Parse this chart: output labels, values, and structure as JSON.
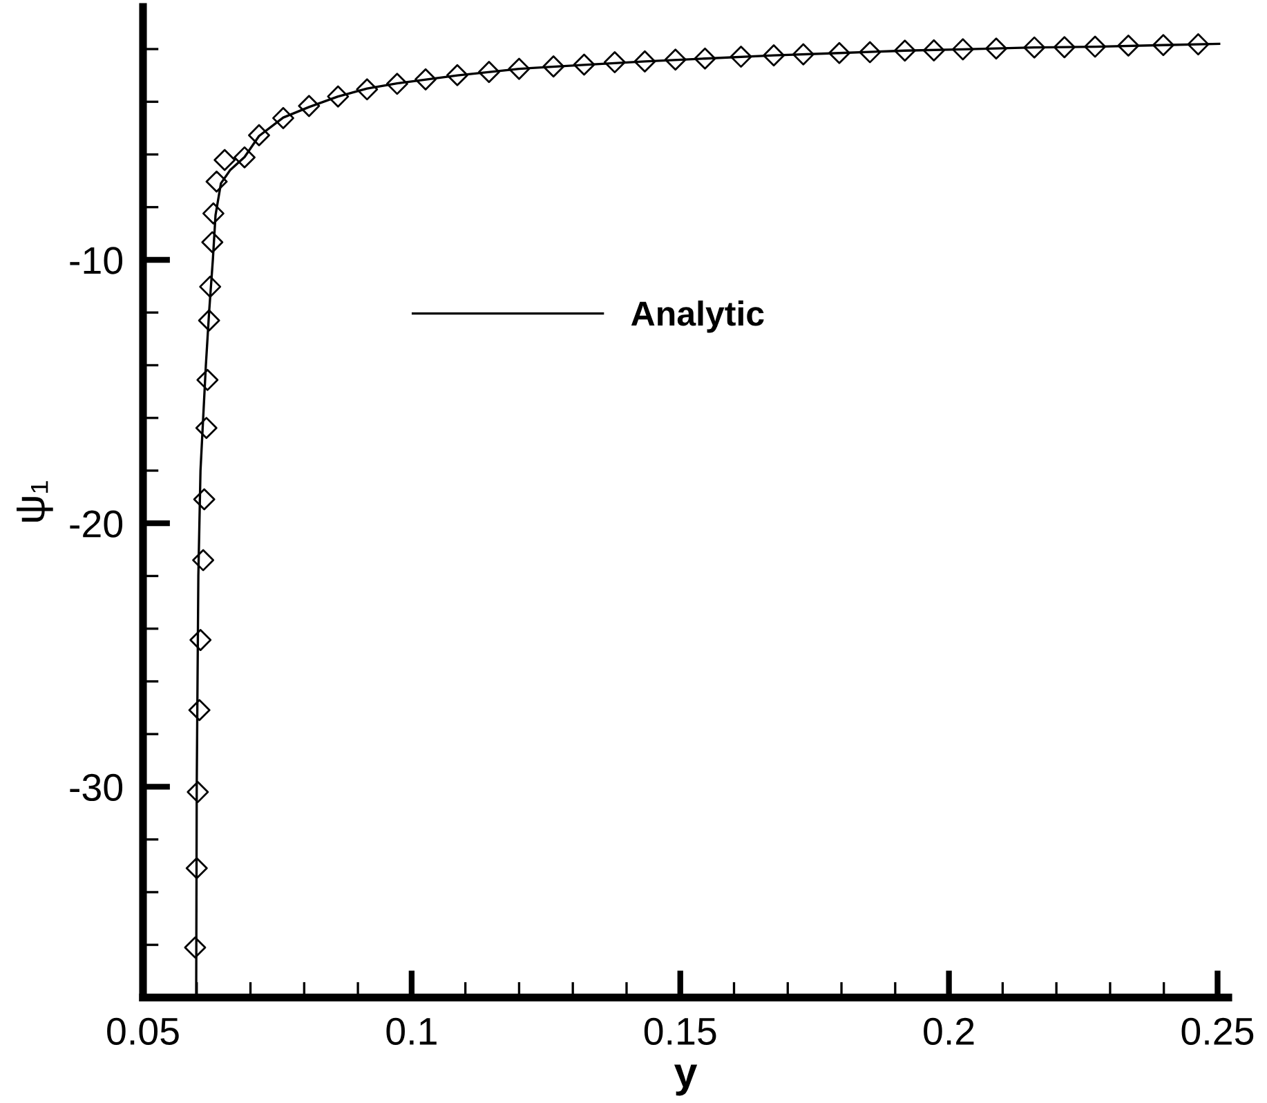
{
  "chart_data": {
    "type": "scatter",
    "xlabel": "y",
    "ylabel": "ψ₁",
    "xlim": [
      0.05,
      0.252
    ],
    "ylim": [
      -38,
      -0.4
    ],
    "xticks": [
      0.05,
      {
        "value": 0.06,
        "label": null
      },
      {
        "value": 0.07,
        "label": null
      },
      {
        "value": 0.08,
        "label": null
      },
      {
        "value": 0.09,
        "label": null
      },
      0.1,
      {
        "value": 0.11,
        "label": null
      },
      {
        "value": 0.12,
        "label": null
      },
      {
        "value": 0.13,
        "label": null
      },
      {
        "value": 0.14,
        "label": null
      },
      0.15,
      {
        "value": 0.16,
        "label": null
      },
      {
        "value": 0.17,
        "label": null
      },
      {
        "value": 0.18,
        "label": null
      },
      {
        "value": 0.19,
        "label": null
      },
      0.2,
      {
        "value": 0.21,
        "label": null
      },
      {
        "value": 0.22,
        "label": null
      },
      {
        "value": 0.23,
        "label": null
      },
      {
        "value": 0.24,
        "label": null
      },
      0.25
    ],
    "yticks": [
      {
        "value": -36,
        "label": null
      },
      {
        "value": -34,
        "label": null
      },
      {
        "value": -32,
        "label": null
      },
      -30,
      {
        "value": -28,
        "label": null
      },
      {
        "value": -26,
        "label": null
      },
      {
        "value": -24,
        "label": null
      },
      {
        "value": -22,
        "label": null
      },
      -20,
      {
        "value": -18,
        "label": null
      },
      {
        "value": -16,
        "label": null
      },
      {
        "value": -14,
        "label": null
      },
      {
        "value": -12,
        "label": null
      },
      -10,
      {
        "value": -8,
        "label": null
      },
      {
        "value": -6,
        "label": null
      },
      {
        "value": -4,
        "label": null
      },
      {
        "value": -2,
        "label": null
      }
    ],
    "grid": false,
    "legend": "top left",
    "series": [
      {
        "color": "#000000",
        "marker": "diamond",
        "x": [
          0.0597,
          0.06,
          0.0602,
          0.0605,
          0.0607,
          0.0612,
          0.0614,
          0.0618,
          0.062,
          0.0623,
          0.0625,
          0.0629,
          0.0631,
          0.0637,
          0.0652,
          0.0689,
          0.0716,
          0.0761,
          0.0809,
          0.0863,
          0.0917,
          0.0973,
          0.1026,
          0.1085,
          0.1144,
          0.12,
          0.1264,
          0.1321,
          0.1378,
          0.1434,
          0.1491,
          0.1546,
          0.1613,
          0.1674,
          0.1729,
          0.1796,
          0.1853,
          0.1918,
          0.1972,
          0.2026,
          0.2088,
          0.2159,
          0.2215,
          0.2272,
          0.2334,
          0.2399,
          0.2464
        ],
        "values": [
          -36.1,
          -33.09,
          -30.2,
          -27.09,
          -24.43,
          -21.4,
          -19.09,
          -16.38,
          -14.56,
          -12.3,
          -11.02,
          -9.33,
          -8.24,
          -7.03,
          -6.21,
          -6.11,
          -5.27,
          -4.62,
          -4.16,
          -3.8,
          -3.53,
          -3.32,
          -3.15,
          -2.99,
          -2.87,
          -2.75,
          -2.66,
          -2.59,
          -2.5,
          -2.47,
          -2.4,
          -2.36,
          -2.29,
          -2.24,
          -2.2,
          -2.15,
          -2.12,
          -2.06,
          -2.05,
          -2.01,
          -1.98,
          -1.94,
          -1.93,
          -1.91,
          -1.87,
          -1.85,
          -1.82
        ]
      },
      {
        "type": "line",
        "name": "Analytic",
        "color": "#000000",
        "marker": "none",
        "line_style": "solid",
        "x": [
          0.0599,
          0.06,
          0.0603,
          0.0607,
          0.0612,
          0.0617,
          0.0623,
          0.063,
          0.0635,
          0.0645,
          0.0662,
          0.0689,
          0.0716,
          0.0761,
          0.0809,
          0.0863,
          0.0917,
          0.0973,
          0.1085,
          0.12,
          0.1321,
          0.1434,
          0.1546,
          0.1674,
          0.1796,
          0.1918,
          0.2026,
          0.2159,
          0.2272,
          0.2399,
          0.2503
        ],
        "values": [
          -38,
          -30,
          -22,
          -18,
          -16,
          -14,
          -12,
          -10,
          -8.3,
          -7.1,
          -6.6,
          -6.1,
          -5.3,
          -4.6,
          -4.2,
          -3.8,
          -3.5,
          -3.3,
          -3.0,
          -2.75,
          -2.6,
          -2.47,
          -2.36,
          -2.24,
          -2.15,
          -2.06,
          -2.01,
          -1.94,
          -1.91,
          -1.85,
          -1.8
        ]
      }
    ]
  }
}
